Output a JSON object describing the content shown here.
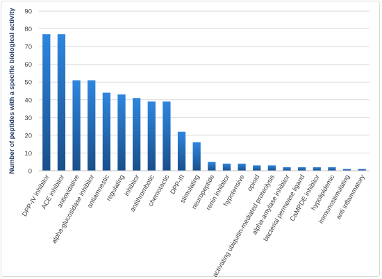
{
  "chart_data": {
    "type": "bar",
    "title": "",
    "xlabel": "",
    "ylabel": "Number of peptides with a specific biological activity",
    "ylim": [
      0,
      90
    ],
    "yticks": [
      0,
      10,
      20,
      30,
      40,
      50,
      60,
      70,
      80,
      90
    ],
    "grid": true,
    "legend": "none",
    "colors": {
      "bar_top": "#2e86de",
      "bar_bottom": "#1a4f8a",
      "ylabel": "#1f3864"
    },
    "categories": [
      "DPP-IV inhibitor",
      "ACE inhibitor",
      "antioxidative",
      "alpha-glucosidase inhibitor",
      "antiamnestic",
      "regulating",
      "inhibitor",
      "antithrombotic",
      "chemotactic",
      "DPP-III",
      "stimulating",
      "neuropeptide",
      "renin inhibitor",
      "hypotensive",
      "opioid",
      "activating ubiquitin-mediated proteolysis",
      "alpha-amylase inhibitor",
      "bacterial permease ligand",
      "CaMPDE inhibitor",
      "hypolipidemic",
      "immunostimulating",
      "anti inflammatory"
    ],
    "values": [
      77,
      77,
      51,
      51,
      44,
      43,
      41,
      39,
      39,
      22,
      16,
      5,
      4,
      4,
      3,
      3,
      2,
      2,
      2,
      2,
      1,
      1
    ]
  }
}
